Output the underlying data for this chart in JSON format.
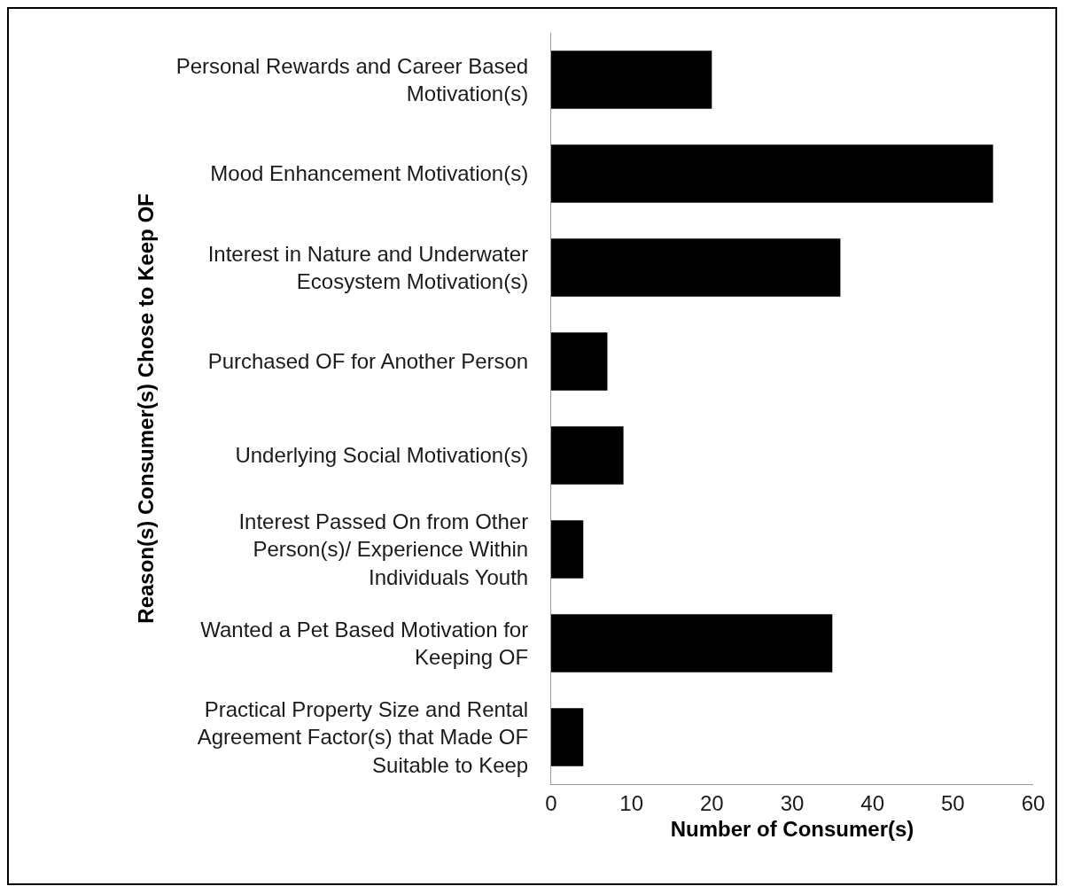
{
  "chart_data": {
    "type": "bar",
    "orientation": "horizontal",
    "xlabel": "Number of Consumer(s)",
    "ylabel": "Reason(s) Consumer(s) Chose to Keep OF",
    "categories": [
      "Personal Rewards and Career Based Motivation(s)",
      "Mood Enhancement Motivation(s)",
      "Interest in Nature and Underwater Ecosystem Motivation(s)",
      "Purchased OF for Another Person",
      "Underlying Social Motivation(s)",
      "Interest Passed On from Other Person(s)/ Experience Within Individuals Youth",
      "Wanted a Pet Based Motivation for Keeping OF",
      "Practical Property Size and Rental Agreement Factor(s) that Made OF Suitable to Keep"
    ],
    "values": [
      20,
      55,
      36,
      7,
      9,
      4,
      35,
      4
    ],
    "color": "#000000",
    "xlim": [
      0,
      60
    ],
    "xticks": [
      0,
      10,
      20,
      30,
      40,
      50,
      60
    ],
    "grid": false,
    "legend": false
  }
}
